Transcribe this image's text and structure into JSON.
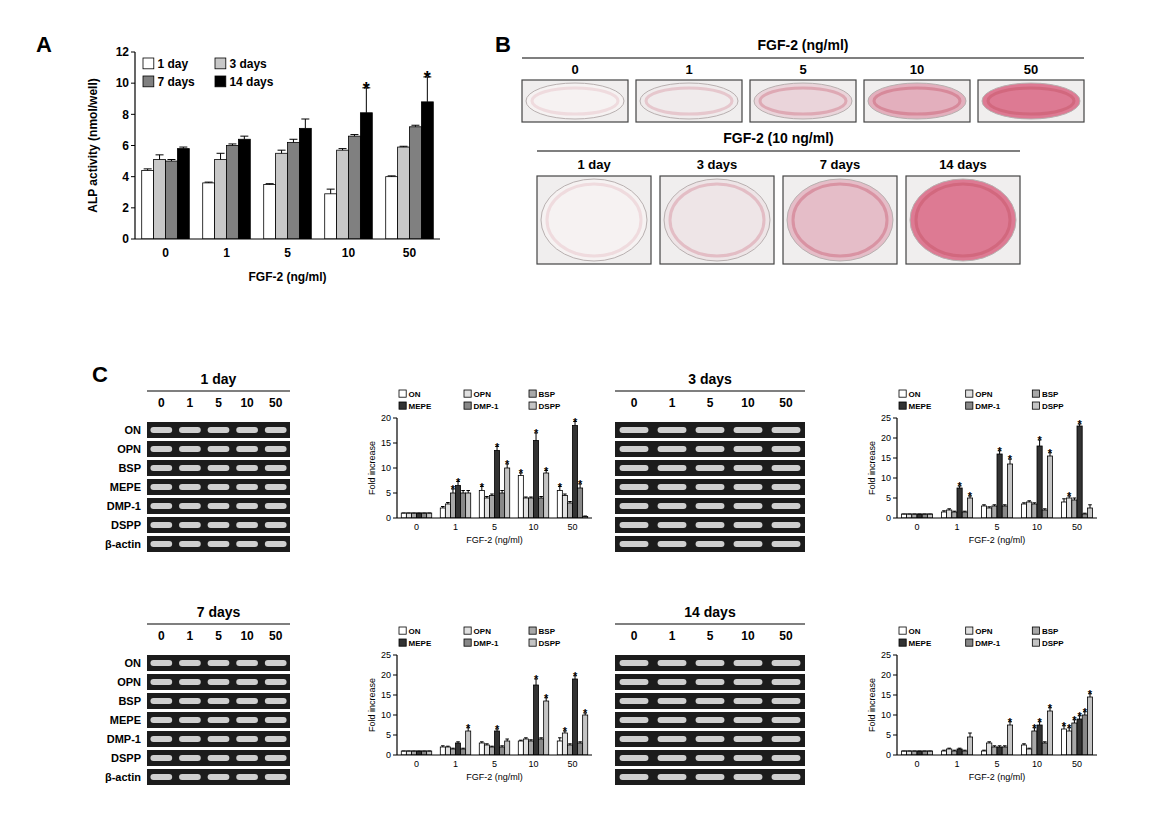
{
  "panel_labels": [
    "A",
    "B",
    "C"
  ],
  "chart_data": [
    {
      "type": "bar",
      "x_label": "FGF-2 (ng/ml)",
      "y_label": "ALP activity (nmol/well)",
      "categories": [
        "0",
        "1",
        "5",
        "10",
        "50"
      ],
      "ylim": [
        0,
        12
      ],
      "yticks": [
        0,
        2,
        4,
        6,
        8,
        10,
        12
      ],
      "legend": "top-left",
      "significance_label": "*",
      "series": [
        {
          "name": "1 day",
          "color": "#ffffff",
          "values": [
            4.4,
            3.6,
            3.5,
            2.9,
            4.0
          ],
          "errors": [
            0.1,
            0.05,
            0.05,
            0.3,
            0.05
          ],
          "significant": [
            false,
            false,
            false,
            false,
            false
          ]
        },
        {
          "name": "3 days",
          "color": "#c8c8c8",
          "values": [
            5.1,
            5.1,
            5.5,
            5.7,
            5.9
          ],
          "errors": [
            0.3,
            0.4,
            0.2,
            0.1,
            0.05
          ],
          "significant": [
            false,
            false,
            false,
            false,
            false
          ]
        },
        {
          "name": "7 days",
          "color": "#808080",
          "values": [
            5.0,
            6.0,
            6.2,
            6.6,
            7.2
          ],
          "errors": [
            0.1,
            0.1,
            0.2,
            0.1,
            0.1
          ],
          "significant": [
            false,
            false,
            false,
            false,
            false
          ]
        },
        {
          "name": "14 days",
          "color": "#000000",
          "values": [
            5.8,
            6.4,
            7.1,
            8.1,
            8.8
          ],
          "errors": [
            0.1,
            0.2,
            0.6,
            1.6,
            1.6
          ],
          "significant": [
            false,
            false,
            false,
            true,
            true
          ]
        }
      ]
    },
    {
      "type": "bar",
      "x_label": "FGF-2 (ng/ml)",
      "y_label": "Fold increase",
      "categories": [
        "0",
        "1",
        "5",
        "10",
        "50"
      ],
      "ylim": [
        0,
        20
      ],
      "yticks": [
        0,
        5,
        10,
        15,
        20
      ],
      "legend": "top",
      "significance_label": "*",
      "series": [
        {
          "name": "ON",
          "color": "#ffffff",
          "values": [
            1,
            2,
            5.5,
            8.5,
            5.5
          ],
          "errors": [
            0,
            0.3,
            0.8,
            0.5,
            0.8
          ],
          "significant": [
            false,
            false,
            true,
            true,
            true
          ]
        },
        {
          "name": "OPN",
          "color": "#e0e0e0",
          "values": [
            1,
            2.8,
            4,
            4,
            4.5
          ],
          "errors": [
            0,
            0.3,
            0.3,
            0.2,
            0.3
          ],
          "significant": [
            false,
            false,
            false,
            false,
            false
          ]
        },
        {
          "name": "BSP",
          "color": "#a8a8a8",
          "values": [
            1,
            5,
            4.5,
            4,
            3
          ],
          "errors": [
            0,
            0.8,
            0.3,
            0.2,
            0.3
          ],
          "significant": [
            false,
            true,
            false,
            false,
            false
          ]
        },
        {
          "name": "MEPE",
          "color": "#333333",
          "values": [
            1,
            6.5,
            13.5,
            15.5,
            18.5
          ],
          "errors": [
            0,
            0.8,
            0.8,
            1.5,
            0.8
          ],
          "significant": [
            false,
            true,
            true,
            true,
            true
          ]
        },
        {
          "name": "DMP-1",
          "color": "#888888",
          "values": [
            1,
            5,
            5,
            4,
            6
          ],
          "errors": [
            0,
            0.5,
            0.5,
            0.3,
            0.8
          ],
          "significant": [
            false,
            false,
            false,
            false,
            true
          ]
        },
        {
          "name": "DSPP",
          "color": "#c4c4c4",
          "values": [
            1,
            5,
            10,
            9,
            0.3
          ],
          "errors": [
            0,
            0.5,
            0.8,
            0.5,
            0.1
          ],
          "significant": [
            false,
            false,
            true,
            true,
            false
          ]
        }
      ]
    },
    {
      "type": "bar",
      "x_label": "FGF-2 (ng/ml)",
      "y_label": "Fold increase",
      "categories": [
        "0",
        "1",
        "5",
        "10",
        "50"
      ],
      "ylim": [
        0,
        25
      ],
      "yticks": [
        0,
        5,
        10,
        15,
        20,
        25
      ],
      "legend": "top",
      "significance_label": "*",
      "series": [
        {
          "name": "ON",
          "color": "#ffffff",
          "values": [
            1,
            1.5,
            3,
            3.5,
            4
          ],
          "errors": [
            0,
            0.3,
            0.3,
            0.3,
            0.8
          ],
          "significant": [
            false,
            false,
            false,
            false,
            false
          ]
        },
        {
          "name": "OPN",
          "color": "#e0e0e0",
          "values": [
            1,
            2,
            2.5,
            4,
            5
          ],
          "errors": [
            0,
            0.3,
            0.3,
            0.3,
            0.5
          ],
          "significant": [
            false,
            false,
            false,
            false,
            true
          ]
        },
        {
          "name": "BSP",
          "color": "#a8a8a8",
          "values": [
            1,
            1.5,
            3,
            3.5,
            4.5
          ],
          "errors": [
            0,
            0.2,
            0.3,
            0.3,
            0.5
          ],
          "significant": [
            false,
            false,
            false,
            false,
            false
          ]
        },
        {
          "name": "MEPE",
          "color": "#333333",
          "values": [
            1,
            7.5,
            16,
            18,
            23
          ],
          "errors": [
            0,
            0.5,
            0.8,
            1.5,
            0.5
          ],
          "significant": [
            false,
            true,
            true,
            true,
            true
          ]
        },
        {
          "name": "DMP-1",
          "color": "#888888",
          "values": [
            1,
            1.5,
            3,
            2,
            1
          ],
          "errors": [
            0,
            0.2,
            0.3,
            0.3,
            0.2
          ],
          "significant": [
            false,
            false,
            false,
            false,
            false
          ]
        },
        {
          "name": "DSPP",
          "color": "#c4c4c4",
          "values": [
            1,
            5,
            13.5,
            15.5,
            2.5
          ],
          "errors": [
            0,
            0.5,
            1.2,
            0.8,
            0.8
          ],
          "significant": [
            false,
            true,
            true,
            true,
            false
          ]
        }
      ]
    },
    {
      "type": "bar",
      "x_label": "FGF-2 (ng/ml)",
      "y_label": "Fold increase",
      "categories": [
        "0",
        "1",
        "5",
        "10",
        "50"
      ],
      "ylim": [
        0,
        25
      ],
      "yticks": [
        0,
        5,
        10,
        15,
        20,
        25
      ],
      "legend": "top",
      "significance_label": "*",
      "series": [
        {
          "name": "ON",
          "color": "#ffffff",
          "values": [
            1,
            2,
            3,
            3.5,
            3.5
          ],
          "errors": [
            0,
            0.3,
            0.3,
            0.2,
            0.8
          ],
          "significant": [
            false,
            false,
            false,
            false,
            false
          ]
        },
        {
          "name": "OPN",
          "color": "#e0e0e0",
          "values": [
            1,
            2,
            2.5,
            4,
            5.5
          ],
          "errors": [
            0,
            0.2,
            0.3,
            0.3,
            0.5
          ],
          "significant": [
            false,
            false,
            false,
            false,
            true
          ]
        },
        {
          "name": "BSP",
          "color": "#a8a8a8",
          "values": [
            1,
            1.5,
            2,
            3.5,
            2.5
          ],
          "errors": [
            0,
            0.2,
            0.2,
            0.3,
            0.3
          ],
          "significant": [
            false,
            false,
            false,
            false,
            false
          ]
        },
        {
          "name": "MEPE",
          "color": "#333333",
          "values": [
            1,
            3,
            6,
            17.5,
            19
          ],
          "errors": [
            0,
            0.3,
            0.5,
            1.5,
            0.8
          ],
          "significant": [
            false,
            false,
            true,
            true,
            true
          ]
        },
        {
          "name": "DMP-1",
          "color": "#888888",
          "values": [
            1,
            1.5,
            2,
            4,
            3
          ],
          "errors": [
            0,
            0.2,
            0.3,
            0.3,
            0.3
          ],
          "significant": [
            false,
            false,
            false,
            false,
            false
          ]
        },
        {
          "name": "DSPP",
          "color": "#c4c4c4",
          "values": [
            1,
            6,
            3.5,
            13.5,
            10
          ],
          "errors": [
            0,
            0.8,
            0.5,
            0.8,
            0.5
          ],
          "significant": [
            false,
            true,
            false,
            true,
            true
          ]
        }
      ]
    },
    {
      "type": "bar",
      "x_label": "FGF-2 (ng/ml)",
      "y_label": "Fold increase",
      "categories": [
        "0",
        "1",
        "5",
        "10",
        "50"
      ],
      "ylim": [
        0,
        25
      ],
      "yticks": [
        0,
        5,
        10,
        15,
        20,
        25
      ],
      "legend": "top",
      "significance_label": "*",
      "series": [
        {
          "name": "ON",
          "color": "#ffffff",
          "values": [
            1,
            1,
            1,
            2.5,
            6.5
          ],
          "errors": [
            0,
            0.2,
            0.2,
            0.3,
            0.8
          ],
          "significant": [
            false,
            false,
            false,
            false,
            true
          ]
        },
        {
          "name": "OPN",
          "color": "#e0e0e0",
          "values": [
            1,
            1.5,
            3,
            1.5,
            6
          ],
          "errors": [
            0,
            0.2,
            0.3,
            0.2,
            0.8
          ],
          "significant": [
            false,
            false,
            false,
            false,
            true
          ]
        },
        {
          "name": "BSP",
          "color": "#a8a8a8",
          "values": [
            1,
            1,
            2,
            6,
            8
          ],
          "errors": [
            0,
            0.2,
            0.3,
            0.8,
            0.8
          ],
          "significant": [
            false,
            false,
            false,
            true,
            true
          ]
        },
        {
          "name": "MEPE",
          "color": "#333333",
          "values": [
            1,
            1.5,
            2,
            7.5,
            9
          ],
          "errors": [
            0,
            0.2,
            0.3,
            0.8,
            0.8
          ],
          "significant": [
            false,
            false,
            false,
            true,
            true
          ]
        },
        {
          "name": "DMP-1",
          "color": "#888888",
          "values": [
            1,
            1,
            2,
            3,
            10
          ],
          "errors": [
            0,
            0.2,
            0.3,
            0.3,
            0.8
          ],
          "significant": [
            false,
            false,
            false,
            false,
            true
          ]
        },
        {
          "name": "DSPP",
          "color": "#c4c4c4",
          "values": [
            1,
            4.5,
            7.5,
            11,
            14.5
          ],
          "errors": [
            0,
            1,
            0.8,
            0.8,
            0.8
          ],
          "significant": [
            false,
            false,
            true,
            true,
            true
          ]
        }
      ]
    }
  ],
  "panel_b": {
    "top": {
      "title": "FGF-2 (ng/ml)",
      "labels": [
        "0",
        "1",
        "5",
        "10",
        "50"
      ]
    },
    "bottom": {
      "title": "FGF-2 (10 ng/ml)",
      "labels": [
        "1 day",
        "3 days",
        "7 days",
        "14 days"
      ]
    }
  },
  "gels": {
    "lanes": [
      "0",
      "1",
      "5",
      "10",
      "50"
    ],
    "panels": [
      {
        "title": "1 day",
        "genes": [
          "ON",
          "OPN",
          "BSP",
          "MEPE",
          "DMP-1",
          "DSPP",
          "β-actin"
        ]
      },
      {
        "title": "3 days"
      },
      {
        "title": "7 days",
        "genes": [
          "ON",
          "OPN",
          "BSP",
          "MEPE",
          "DMP-1",
          "DSPP",
          "β-actin"
        ]
      },
      {
        "title": "14 days"
      }
    ]
  }
}
